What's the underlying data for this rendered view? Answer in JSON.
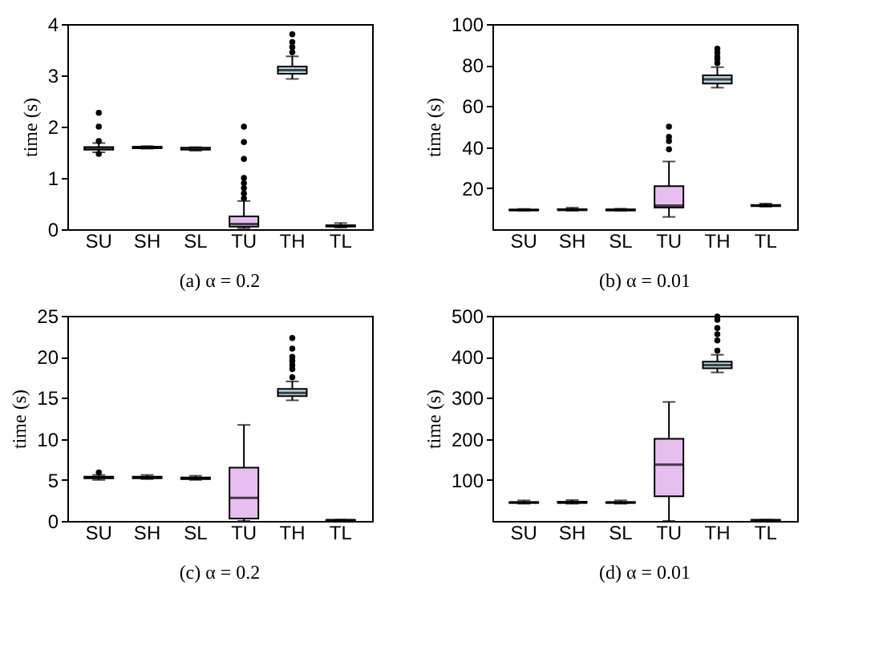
{
  "chart_data": [
    {
      "type": "box",
      "title": "(a) α = 0.2",
      "ylabel": "time (s)",
      "categories": [
        "SU",
        "SH",
        "SL",
        "TU",
        "TH",
        "TL"
      ],
      "ylim": [
        0,
        4
      ],
      "yticks": [
        0,
        1,
        2,
        3,
        4
      ],
      "grid": false,
      "colors": [
        "#ffffff",
        "#ffffff",
        "#ffffff",
        "#e6bff0",
        "#bcd6e2",
        "#ffffff"
      ],
      "boxes": [
        {
          "low": 1.5,
          "q1": 1.55,
          "median": 1.57,
          "q3": 1.6,
          "high": 1.68,
          "outliers": [
            1.47,
            1.72,
            2.0,
            2.27
          ]
        },
        {
          "low": 1.57,
          "q1": 1.58,
          "median": 1.59,
          "q3": 1.61,
          "high": 1.62
        },
        {
          "low": 1.53,
          "q1": 1.55,
          "median": 1.57,
          "q3": 1.59,
          "high": 1.6
        },
        {
          "low": 0.02,
          "q1": 0.05,
          "median": 0.1,
          "q3": 0.25,
          "high": 0.55,
          "outliers": [
            0.6,
            0.7,
            0.8,
            0.9,
            1.0,
            1.37,
            1.7,
            2.0
          ]
        },
        {
          "low": 2.93,
          "q1": 3.03,
          "median": 3.1,
          "q3": 3.17,
          "high": 3.37,
          "outliers": [
            3.45,
            3.55,
            3.65,
            3.8
          ]
        },
        {
          "low": 0.03,
          "q1": 0.05,
          "median": 0.07,
          "q3": 0.08,
          "high": 0.12
        }
      ]
    },
    {
      "type": "box",
      "title": "(b) α = 0.01",
      "ylabel": "time (s)",
      "categories": [
        "SU",
        "SH",
        "SL",
        "TU",
        "TH",
        "TL"
      ],
      "ylim": [
        0,
        100
      ],
      "yticks": [
        20,
        40,
        60,
        80,
        100
      ],
      "grid": false,
      "colors": [
        "#ffffff",
        "#ffffff",
        "#ffffff",
        "#e6bff0",
        "#bcd6e2",
        "#ffffff"
      ],
      "boxes": [
        {
          "low": 9,
          "q1": 9.2,
          "median": 9.4,
          "q3": 9.6,
          "high": 9.9
        },
        {
          "low": 9,
          "q1": 9.3,
          "median": 9.5,
          "q3": 9.8,
          "high": 10.5
        },
        {
          "low": 9,
          "q1": 9.2,
          "median": 9.4,
          "q3": 9.7,
          "high": 10
        },
        {
          "low": 6,
          "q1": 10.5,
          "median": 11.5,
          "q3": 21,
          "high": 33,
          "outliers": [
            39,
            43,
            45,
            50
          ]
        },
        {
          "low": 69,
          "q1": 71,
          "median": 73,
          "q3": 75,
          "high": 79,
          "outliers": [
            81,
            83,
            84,
            86,
            88
          ]
        },
        {
          "low": 11,
          "q1": 11.2,
          "median": 11.5,
          "q3": 11.8,
          "high": 12.5
        }
      ]
    },
    {
      "type": "box",
      "title": "(c) α = 0.2",
      "ylabel": "time (s)",
      "categories": [
        "SU",
        "SH",
        "SL",
        "TU",
        "TH",
        "TL"
      ],
      "ylim": [
        0,
        25
      ],
      "yticks": [
        0,
        5,
        10,
        15,
        20,
        25
      ],
      "grid": false,
      "colors": [
        "#ffffff",
        "#ffffff",
        "#ffffff",
        "#e6bff0",
        "#bcd6e2",
        "#ffffff"
      ],
      "boxes": [
        {
          "low": 5.0,
          "q1": 5.2,
          "median": 5.3,
          "q3": 5.4,
          "high": 5.6,
          "outliers": [
            5.9
          ]
        },
        {
          "low": 5.1,
          "q1": 5.2,
          "median": 5.3,
          "q3": 5.4,
          "high": 5.6
        },
        {
          "low": 5.0,
          "q1": 5.1,
          "median": 5.2,
          "q3": 5.3,
          "high": 5.5
        },
        {
          "low": 0,
          "q1": 0.3,
          "median": 2.8,
          "q3": 6.5,
          "high": 11.7
        },
        {
          "low": 14.7,
          "q1": 15.2,
          "median": 15.6,
          "q3": 16.1,
          "high": 17,
          "outliers": [
            17.5,
            18.5,
            19,
            19.5,
            20,
            21,
            22.3
          ]
        },
        {
          "low": 0.05,
          "q1": 0.08,
          "median": 0.1,
          "q3": 0.12,
          "high": 0.15
        }
      ]
    },
    {
      "type": "box",
      "title": "(d) α = 0.01",
      "ylabel": "time (s)",
      "categories": [
        "SU",
        "SH",
        "SL",
        "TU",
        "TH",
        "TL"
      ],
      "ylim": [
        0,
        500
      ],
      "yticks": [
        100,
        200,
        300,
        400,
        500
      ],
      "grid": false,
      "colors": [
        "#ffffff",
        "#ffffff",
        "#ffffff",
        "#e6bff0",
        "#bcd6e2",
        "#ffffff"
      ],
      "boxes": [
        {
          "low": 42,
          "q1": 44,
          "median": 45,
          "q3": 46,
          "high": 50
        },
        {
          "low": 42,
          "q1": 44,
          "median": 45,
          "q3": 47,
          "high": 51
        },
        {
          "low": 42,
          "q1": 44,
          "median": 45,
          "q3": 46,
          "high": 50
        },
        {
          "low": 0,
          "q1": 60,
          "median": 137,
          "q3": 200,
          "high": 290
        },
        {
          "low": 362,
          "q1": 372,
          "median": 380,
          "q3": 388,
          "high": 405,
          "outliers": [
            415,
            440,
            455,
            470,
            490,
            498
          ]
        },
        {
          "low": 1,
          "q1": 1.5,
          "median": 2,
          "q3": 2.5,
          "high": 3
        }
      ]
    }
  ]
}
